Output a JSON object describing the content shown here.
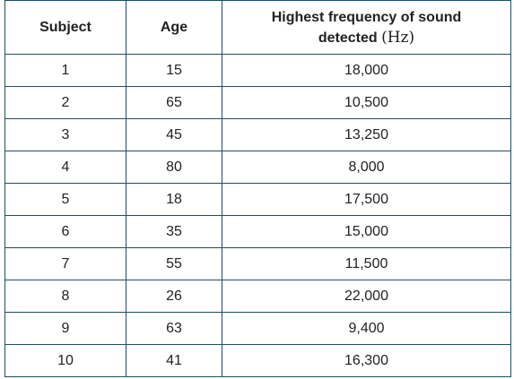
{
  "chart_data": {
    "type": "table",
    "columns": {
      "subject": "Subject",
      "age": "Age",
      "frequency_line1": "Highest frequency of sound",
      "frequency_line2": "detected",
      "frequency_unit": "(Hz)"
    },
    "rows": [
      {
        "subject": "1",
        "age": "15",
        "frequency": "18,000"
      },
      {
        "subject": "2",
        "age": "65",
        "frequency": "10,500"
      },
      {
        "subject": "3",
        "age": "45",
        "frequency": "13,250"
      },
      {
        "subject": "4",
        "age": "80",
        "frequency": "8,000"
      },
      {
        "subject": "5",
        "age": "18",
        "frequency": "17,500"
      },
      {
        "subject": "6",
        "age": "35",
        "frequency": "15,000"
      },
      {
        "subject": "7",
        "age": "55",
        "frequency": "11,500"
      },
      {
        "subject": "8",
        "age": "26",
        "frequency": "22,000"
      },
      {
        "subject": "9",
        "age": "63",
        "frequency": "9,400"
      },
      {
        "subject": "10",
        "age": "41",
        "frequency": "16,300"
      }
    ]
  },
  "colors": {
    "border": "#1f4e5f",
    "text": "#222222"
  }
}
